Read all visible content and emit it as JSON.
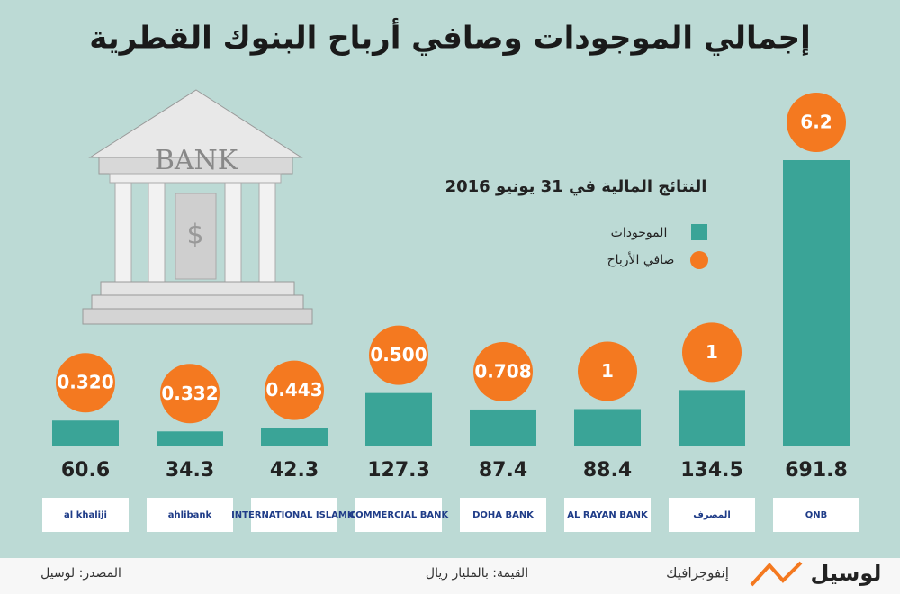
{
  "title": "إجمالي الموجودات وصافي أرباح البنوك القطرية",
  "illustration_label": "BANK",
  "chart_data": {
    "type": "bar",
    "subtitle": "النتائج المالية في 31 يونيو 2016",
    "categories": [
      "al khaliji",
      "ahlibank",
      "INTERNATIONAL ISLAMIC",
      "COMMERCIAL BANK",
      "DOHA BANK",
      "AL RAYAN BANK",
      "المصرف",
      "QNB"
    ],
    "series": [
      {
        "name": "الموجودات",
        "color": "#3aa497",
        "values": [
          60.6,
          34.3,
          42.3,
          127.3,
          87.4,
          88.4,
          134.5,
          691.8
        ]
      },
      {
        "name": "صافي الأرباح",
        "color": "#f47920",
        "values": [
          0.32,
          0.332,
          0.443,
          0.5,
          0.708,
          1,
          1,
          6.2
        ],
        "value_labels": [
          "0.320",
          "0.332",
          "0.443",
          "0.500",
          "0.708",
          "1",
          "1",
          "6.2"
        ]
      }
    ]
  },
  "footer": {
    "source": "المصدر: لوسيل",
    "unit": "القيمة: بالمليار ريال",
    "section": "إنفوجرافيك",
    "brand": "لوسيل"
  }
}
